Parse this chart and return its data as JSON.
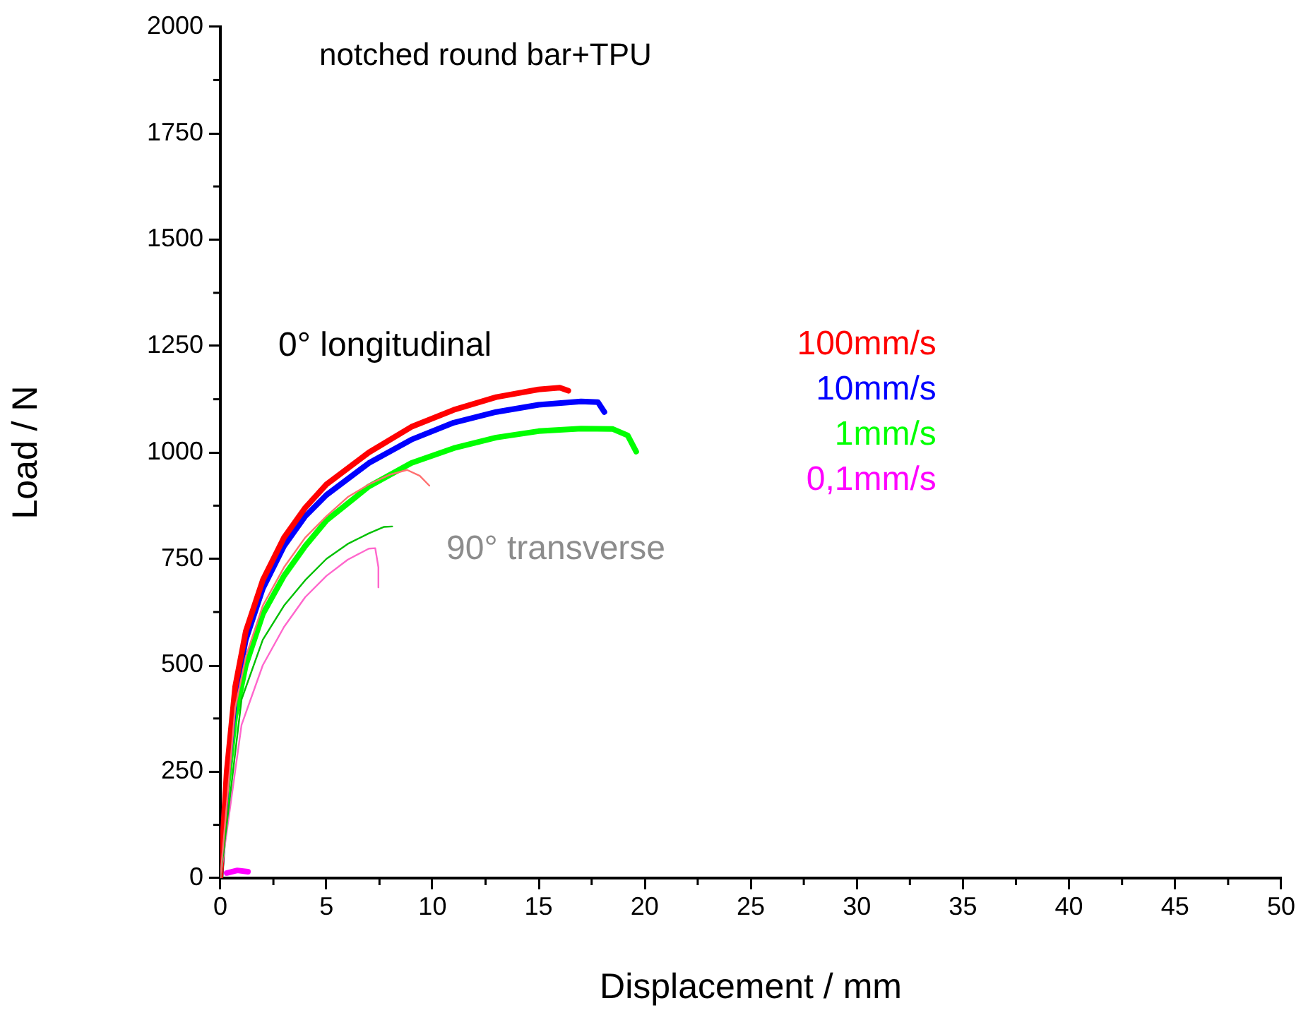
{
  "chart_data": {
    "type": "line",
    "title": "notched round bar+TPU",
    "xlabel": "Displacement / mm",
    "ylabel": "Load / N",
    "xlim": [
      0,
      50
    ],
    "xticks": [
      0,
      5,
      10,
      15,
      20,
      25,
      30,
      35,
      40,
      45,
      50
    ],
    "ylim": [
      0,
      2000
    ],
    "yticks": [
      0,
      250,
      500,
      750,
      1000,
      1250,
      1500,
      1750,
      2000
    ],
    "grid": false,
    "legend": "right",
    "marker": "none",
    "line_style": "solid",
    "annotations": [
      "0° longitudinal",
      "90° transverse"
    ],
    "series": [
      {
        "name": "100mm/s",
        "color": "#ff0000",
        "x": [
          0,
          0.3,
          0.7,
          1.2,
          2,
          3,
          4,
          5,
          7,
          9,
          11,
          13,
          15,
          16,
          16.4
        ],
        "values": [
          0,
          250,
          450,
          580,
          700,
          800,
          870,
          925,
          1000,
          1060,
          1100,
          1130,
          1148,
          1152,
          1145
        ]
      },
      {
        "name": "10mm/s",
        "color": "#0000ff",
        "x": [
          0,
          0.3,
          0.7,
          1.2,
          2,
          3,
          4,
          5,
          7,
          9,
          11,
          13,
          15,
          17,
          17.8,
          18.1
        ],
        "values": [
          0,
          230,
          430,
          560,
          680,
          780,
          850,
          900,
          975,
          1030,
          1070,
          1095,
          1112,
          1120,
          1118,
          1095
        ]
      },
      {
        "name": "1mm/s",
        "color": "#00ff00",
        "x": [
          0,
          0.3,
          0.7,
          1.2,
          2,
          3,
          4,
          5,
          7,
          9,
          11,
          13,
          15,
          17,
          18.5,
          19.2,
          19.6
        ],
        "values": [
          0,
          200,
          380,
          500,
          620,
          710,
          780,
          840,
          920,
          975,
          1010,
          1035,
          1050,
          1056,
          1055,
          1040,
          1002
        ]
      },
      {
        "name": "0,1mm/s",
        "color": "#ff00ff",
        "x": [
          0.3,
          0.8,
          1.3
        ],
        "values": [
          12,
          18,
          15
        ]
      },
      {
        "color": "#ff7070",
        "x": [
          0,
          0.7,
          1.2,
          2,
          3,
          4,
          5,
          6,
          7,
          8,
          8.8,
          9.4,
          9.85
        ],
        "values": [
          0,
          400,
          520,
          640,
          730,
          800,
          850,
          895,
          925,
          948,
          959,
          945,
          922
        ]
      },
      {
        "color": "#00c000",
        "x": [
          0,
          1,
          2,
          3,
          4,
          5,
          6,
          7,
          7.7,
          8.1
        ],
        "values": [
          0,
          420,
          560,
          640,
          700,
          750,
          785,
          810,
          825,
          826
        ]
      },
      {
        "color": "#ff66cc",
        "x": [
          0,
          1,
          2,
          3,
          4,
          5,
          6,
          7,
          7.3,
          7.45,
          7.45
        ],
        "values": [
          0,
          360,
          500,
          590,
          660,
          710,
          748,
          774,
          775,
          730,
          683
        ]
      }
    ]
  }
}
